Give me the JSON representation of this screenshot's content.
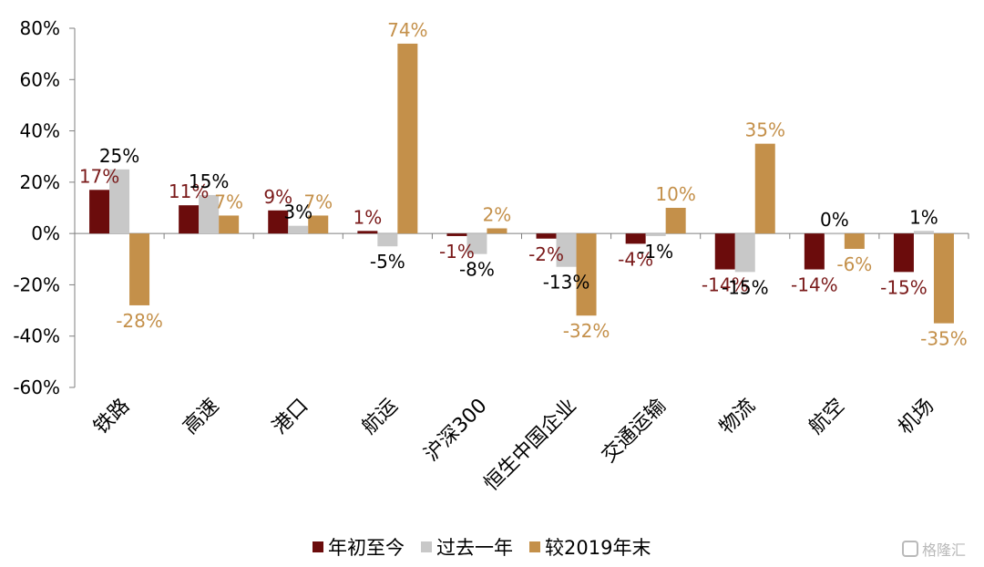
{
  "chart_data": {
    "type": "bar",
    "categories": [
      "铁路",
      "高速",
      "港口",
      "航运",
      "沪深300",
      "恒生中国企业",
      "交通运输",
      "物流",
      "航空",
      "机场"
    ],
    "series": [
      {
        "name": "年初至今",
        "color": "#6b0c0c",
        "label_color": "#7a1a1a",
        "values": [
          17,
          11,
          9,
          1,
          -1,
          -2,
          -4,
          -14,
          -14,
          -15
        ],
        "labels": [
          "17%",
          "11%",
          "9%",
          "1%",
          "-1%",
          "-2%",
          "-4%",
          "-14%",
          "-14%",
          "-15%"
        ]
      },
      {
        "name": "过去一年",
        "color": "#c8c8c8",
        "label_color": "#000000",
        "values": [
          25,
          15,
          3,
          -5,
          -8,
          -13,
          -1,
          -15,
          0,
          1
        ],
        "labels": [
          "25%",
          "15%",
          "3%",
          "-5%",
          "-8%",
          "-13%",
          "-1%",
          "-15%",
          "0%",
          "1%"
        ]
      },
      {
        "name": "较2019年末",
        "color": "#c4904a",
        "label_color": "#c4904a",
        "values": [
          -28,
          7,
          7,
          74,
          2,
          -32,
          10,
          35,
          -6,
          -35
        ],
        "labels": [
          "-28%",
          "7%",
          "7%",
          "74%",
          "2%",
          "-32%",
          "10%",
          "35%",
          "-6%",
          "-35%"
        ]
      }
    ],
    "ylim": [
      -60,
      80
    ],
    "yticks": [
      "-60%",
      "-40%",
      "-20%",
      "0%",
      "20%",
      "40%",
      "60%",
      "80%"
    ],
    "ytick_values": [
      -60,
      -40,
      -20,
      0,
      20,
      40,
      60,
      80
    ],
    "grid": false,
    "legend_position": "bottom"
  },
  "watermark": {
    "text": "格隆汇"
  }
}
